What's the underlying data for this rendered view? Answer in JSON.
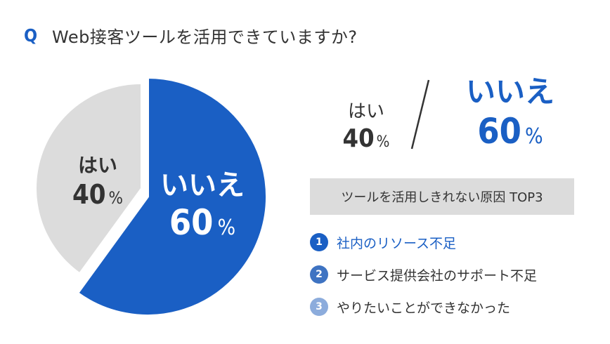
{
  "question": {
    "mark": "Q",
    "text": "Web接客ツールを活用できていますか?"
  },
  "chart_data": {
    "type": "pie",
    "slices": [
      {
        "label": "いいえ",
        "value": 60,
        "display": "60",
        "unit": "%",
        "color": "#1a5fc4"
      },
      {
        "label": "はい",
        "value": 40,
        "display": "40",
        "unit": "%",
        "color": "#dcdcdc"
      }
    ]
  },
  "summary": {
    "yes": {
      "label": "はい",
      "value": "40",
      "unit": "%"
    },
    "no": {
      "label": "いいえ",
      "value": "60",
      "unit": "%"
    }
  },
  "reasons": {
    "title": "ツールを活用しきれない原因 TOP3",
    "items": [
      {
        "rank": "1",
        "text": "社内のリソース不足",
        "color": "#1a5fc4"
      },
      {
        "rank": "2",
        "text": "サービス提供会社のサポート不足",
        "color": "#3e73c2"
      },
      {
        "rank": "3",
        "text": "やりたいことができなかった",
        "color": "#8cacdc"
      }
    ]
  }
}
